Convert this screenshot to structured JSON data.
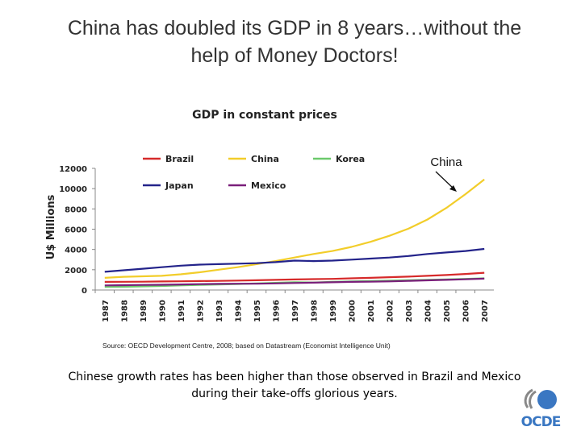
{
  "slide": {
    "title_line1": "China has doubled its GDP in 8 years…without the",
    "title_line2": "help of Money Doctors!",
    "source": "Source:  OECD Development Centre, 2008; based on  Datastream (Economist Intelligence Unit)",
    "caption_line1": "Chinese growth rates has been higher than those observed in Brazil and Mexico",
    "caption_line2": "during their take-offs glorious years.",
    "logo_text": "OCDE",
    "logo_color": "#3a77c2"
  },
  "chart_data": {
    "type": "line",
    "title": "GDP in constant prices",
    "ylabel": "U$ Millions",
    "xlabel": "",
    "ylim": [
      0,
      12000
    ],
    "yticks": [
      "0",
      "2000",
      "4000",
      "6000",
      "8000",
      "10000",
      "12000"
    ],
    "ytick_values": [
      0,
      2000,
      4000,
      6000,
      8000,
      10000,
      12000
    ],
    "categories": [
      "1987",
      "1988",
      "1989",
      "1990",
      "1991",
      "1992",
      "1993",
      "1994",
      "1995",
      "1996",
      "1997",
      "1998",
      "1999",
      "2000",
      "2001",
      "2002",
      "2003",
      "2004",
      "2005",
      "2006",
      "2007"
    ],
    "annotation": "China",
    "legend_position": "top",
    "series": [
      {
        "name": "Brazil",
        "color": "#d62a2a",
        "values": [
          800,
          810,
          820,
          840,
          860,
          880,
          900,
          930,
          960,
          1000,
          1040,
          1070,
          1100,
          1150,
          1200,
          1260,
          1320,
          1400,
          1480,
          1580,
          1700
        ]
      },
      {
        "name": "China",
        "color": "#f2cd2a",
        "values": [
          1200,
          1300,
          1350,
          1400,
          1550,
          1750,
          2000,
          2250,
          2550,
          2850,
          3200,
          3550,
          3850,
          4250,
          4750,
          5350,
          6050,
          6950,
          8100,
          9450,
          10900
        ]
      },
      {
        "name": "Korea",
        "color": "#6cc96c",
        "values": [
          300,
          320,
          360,
          400,
          450,
          500,
          540,
          590,
          650,
          710,
          770,
          740,
          800,
          850,
          880,
          920,
          960,
          1010,
          1050,
          1100,
          1150
        ]
      },
      {
        "name": "Japan",
        "color": "#23238a",
        "values": [
          1800,
          1950,
          2100,
          2250,
          2400,
          2500,
          2550,
          2600,
          2650,
          2750,
          2900,
          2850,
          2900,
          3000,
          3100,
          3200,
          3350,
          3550,
          3700,
          3850,
          4050
        ]
      },
      {
        "name": "Mexico",
        "color": "#7a1f7a",
        "values": [
          450,
          480,
          500,
          520,
          550,
          580,
          600,
          620,
          620,
          650,
          690,
          720,
          760,
          800,
          820,
          850,
          900,
          950,
          1000,
          1060,
          1120
        ]
      }
    ]
  }
}
